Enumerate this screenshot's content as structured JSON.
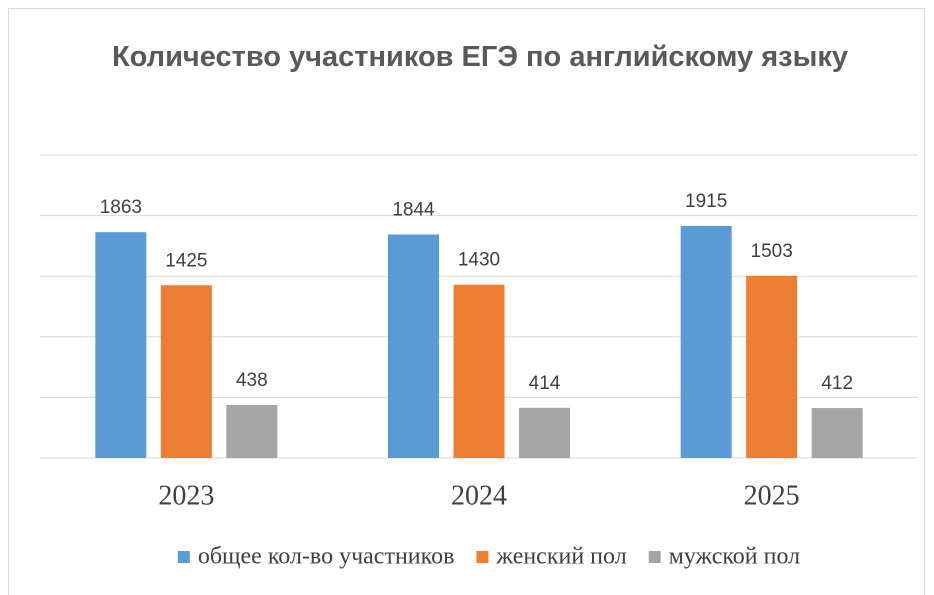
{
  "chart_data": {
    "type": "bar",
    "title": "Количество участников ЕГЭ по английскому языку",
    "categories": [
      "2023",
      "2024",
      "2025"
    ],
    "series": [
      {
        "name": "общее кол-во участников",
        "color": "#5b9bd5",
        "values": [
          1863,
          1844,
          1915
        ]
      },
      {
        "name": "женский пол",
        "color": "#ed7d31",
        "values": [
          1425,
          1430,
          1503
        ]
      },
      {
        "name": "мужской пол",
        "color": "#a5a5a5",
        "values": [
          438,
          414,
          412
        ]
      }
    ],
    "ylim": [
      0,
      2500
    ],
    "yticks": [
      0,
      500,
      1000,
      1500,
      2000,
      2500
    ],
    "grid": true,
    "legend": "bottom"
  }
}
